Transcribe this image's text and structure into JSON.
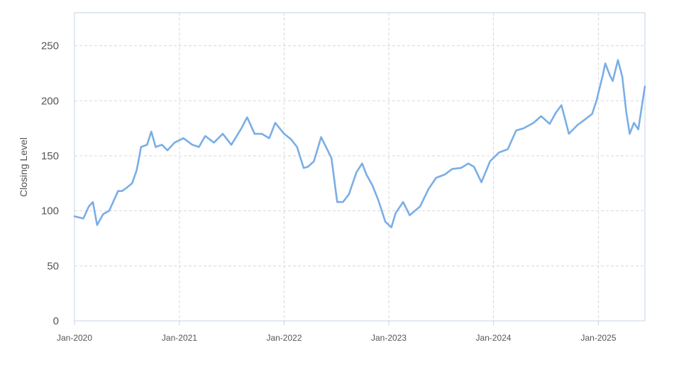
{
  "chart_data": {
    "type": "line",
    "title": "",
    "xlabel": "",
    "ylabel": "Closing Level",
    "xlim": [
      "2020-01-01",
      "2025-06-12"
    ],
    "ylim": [
      0,
      280
    ],
    "grid": true,
    "y_ticks": [
      0,
      50,
      100,
      150,
      200,
      250
    ],
    "y_tick_labels": [
      "0",
      "50",
      "100",
      "150",
      "200",
      "250"
    ],
    "x_ticks": [
      "2020-01-01",
      "2021-01-01",
      "2022-01-01",
      "2023-01-01",
      "2024-01-01",
      "2025-01-01"
    ],
    "x_tick_labels": [
      "Jan-2020",
      "Jan-2021",
      "Jan-2022",
      "Jan-2023",
      "Jan-2024",
      "Jan-2025"
    ],
    "colors": {
      "line": "#7aaee6",
      "grid": "#d8d8d8",
      "axis_frame": "#c5d3e6"
    },
    "series": [
      {
        "name": "",
        "x": [
          "2020-01-01",
          "2020-02-01",
          "2020-02-20",
          "2020-03-05",
          "2020-03-20",
          "2020-04-10",
          "2020-05-01",
          "2020-06-01",
          "2020-06-15",
          "2020-07-01",
          "2020-07-20",
          "2020-08-05",
          "2020-08-20",
          "2020-09-10",
          "2020-09-25",
          "2020-10-10",
          "2020-11-01",
          "2020-11-20",
          "2020-12-15",
          "2021-01-15",
          "2021-02-15",
          "2021-03-10",
          "2021-04-01",
          "2021-05-01",
          "2021-06-01",
          "2021-07-01",
          "2021-08-05",
          "2021-08-25",
          "2021-09-20",
          "2021-10-15",
          "2021-11-10",
          "2021-12-01",
          "2022-01-01",
          "2022-01-25",
          "2022-02-15",
          "2022-03-10",
          "2022-03-25",
          "2022-04-15",
          "2022-05-10",
          "2022-06-15",
          "2022-07-05",
          "2022-07-25",
          "2022-08-15",
          "2022-09-10",
          "2022-09-30",
          "2022-10-15",
          "2022-11-05",
          "2022-11-25",
          "2022-12-20",
          "2023-01-10",
          "2023-01-25",
          "2023-02-20",
          "2023-03-15",
          "2023-04-20",
          "2023-05-20",
          "2023-06-15",
          "2023-07-15",
          "2023-08-10",
          "2023-09-10",
          "2023-10-05",
          "2023-10-25",
          "2023-11-20",
          "2023-12-20",
          "2024-01-20",
          "2024-02-20",
          "2024-03-20",
          "2024-04-15",
          "2024-05-20",
          "2024-06-15",
          "2024-07-15",
          "2024-08-05",
          "2024-08-25",
          "2024-09-20",
          "2024-10-20",
          "2024-11-15",
          "2024-12-10",
          "2024-12-25",
          "2025-01-15",
          "2025-01-25",
          "2025-02-10",
          "2025-02-20",
          "2025-03-10",
          "2025-03-25",
          "2025-04-08",
          "2025-04-20",
          "2025-05-05",
          "2025-05-20",
          "2025-06-12"
        ],
        "y": [
          95,
          93,
          104,
          108,
          87,
          97,
          100,
          118,
          118,
          121,
          125,
          137,
          158,
          160,
          172,
          158,
          160,
          155,
          162,
          166,
          160,
          158,
          168,
          162,
          170,
          160,
          175,
          185,
          170,
          170,
          166,
          180,
          170,
          165,
          158,
          139,
          140,
          145,
          167,
          148,
          108,
          108,
          115,
          135,
          143,
          133,
          123,
          110,
          90,
          85,
          98,
          108,
          96,
          104,
          120,
          130,
          133,
          138,
          139,
          143,
          140,
          126,
          145,
          153,
          156,
          173,
          175,
          180,
          186,
          179,
          189,
          196,
          170,
          178,
          183,
          188,
          200,
          222,
          234,
          223,
          218,
          237,
          222,
          190,
          170,
          180,
          174,
          213
        ]
      }
    ]
  }
}
